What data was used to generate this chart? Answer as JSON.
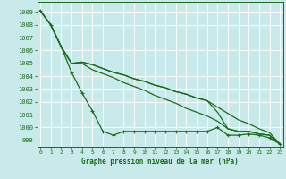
{
  "title": "Graphe pression niveau de la mer (hPa)",
  "bg_color": "#c8eaea",
  "grid_color": "#aadddd",
  "line_color": "#1a6b1a",
  "ylim": [
    998.5,
    1009.8
  ],
  "xlim": [
    -0.3,
    23.3
  ],
  "yticks": [
    999,
    1000,
    1001,
    1002,
    1003,
    1004,
    1005,
    1006,
    1007,
    1008,
    1009
  ],
  "xticks": [
    0,
    1,
    2,
    3,
    4,
    5,
    6,
    7,
    8,
    9,
    10,
    11,
    12,
    13,
    14,
    15,
    16,
    17,
    18,
    19,
    20,
    21,
    22,
    23
  ],
  "series": [
    [
      1009.1,
      1008.0,
      1006.3,
      1004.3,
      1002.7,
      1001.3,
      999.7,
      999.4,
      999.7,
      999.7,
      999.7,
      999.7,
      999.7,
      999.7,
      999.7,
      999.7,
      999.7,
      1000.0,
      999.4,
      999.4,
      999.5,
      999.4,
      999.2,
      998.7
    ],
    [
      1009.1,
      1008.0,
      1006.3,
      1005.0,
      1005.1,
      1004.9,
      1004.6,
      1004.3,
      1004.1,
      1003.8,
      1003.6,
      1003.3,
      1003.1,
      1002.8,
      1002.6,
      1002.3,
      1002.1,
      1001.6,
      1001.1,
      1000.6,
      1000.3,
      999.9,
      999.6,
      998.7
    ],
    [
      1009.1,
      1008.0,
      1006.3,
      1005.0,
      1005.0,
      1004.5,
      1004.2,
      1003.9,
      1003.5,
      1003.2,
      1002.9,
      1002.5,
      1002.2,
      1001.9,
      1001.5,
      1001.2,
      1000.9,
      1000.5,
      999.9,
      999.7,
      999.7,
      999.5,
      999.4,
      998.7
    ],
    [
      1009.1,
      1008.0,
      1006.3,
      1005.0,
      1005.1,
      1004.9,
      1004.6,
      1004.3,
      1004.1,
      1003.8,
      1003.6,
      1003.3,
      1003.1,
      1002.8,
      1002.6,
      1002.3,
      1002.1,
      1001.2,
      999.9,
      999.7,
      999.7,
      999.5,
      999.4,
      998.7
    ]
  ]
}
